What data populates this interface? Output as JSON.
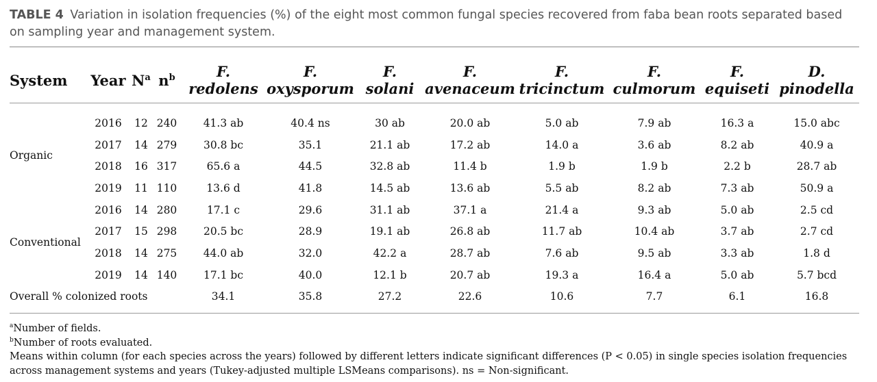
{
  "caption": {
    "label": "TABLE 4",
    "text": "Variation in isolation frequencies (%) of the eight most common fungal species recovered from faba bean roots separated based on sampling year and management system."
  },
  "headers": {
    "system": "System",
    "year": "Year",
    "N": "N",
    "N_sup": "a",
    "n": "n",
    "n_sup": "b",
    "species": [
      {
        "genus": "F.",
        "epithet": "redolens"
      },
      {
        "genus": "F.",
        "epithet": "oxysporum"
      },
      {
        "genus": "F.",
        "epithet": "solani"
      },
      {
        "genus": "F.",
        "epithet": "avenaceum"
      },
      {
        "genus": "F.",
        "epithet": "tricinctum"
      },
      {
        "genus": "F.",
        "epithet": "culmorum"
      },
      {
        "genus": "F.",
        "epithet": "equiseti"
      },
      {
        "genus": "D.",
        "epithet": "pinodella"
      }
    ]
  },
  "groups": [
    {
      "system": "Organic",
      "rows": [
        {
          "year": "2016",
          "N": "12",
          "n": "240",
          "values": [
            "41.3 ab",
            "40.4 ns",
            "30 ab",
            "20.0 ab",
            "5.0 ab",
            "7.9 ab",
            "16.3 a",
            "15.0 abc"
          ]
        },
        {
          "year": "2017",
          "N": "14",
          "n": "279",
          "values": [
            "30.8 bc",
            "35.1",
            "21.1 ab",
            "17.2 ab",
            "14.0 a",
            "3.6 ab",
            "8.2 ab",
            "40.9 a"
          ]
        },
        {
          "year": "2018",
          "N": "16",
          "n": "317",
          "values": [
            "65.6 a",
            "44.5",
            "32.8 ab",
            "11.4 b",
            "1.9 b",
            "1.9 b",
            "2.2 b",
            "28.7 ab"
          ]
        },
        {
          "year": "2019",
          "N": "11",
          "n": "110",
          "values": [
            "13.6 d",
            "41.8",
            "14.5 ab",
            "13.6 ab",
            "5.5 ab",
            "8.2 ab",
            "7.3 ab",
            "50.9 a"
          ]
        }
      ]
    },
    {
      "system": "Conventional",
      "rows": [
        {
          "year": "2016",
          "N": "14",
          "n": "280",
          "values": [
            "17.1 c",
            "29.6",
            "31.1 ab",
            "37.1 a",
            "21.4 a",
            "9.3 ab",
            "5.0 ab",
            "2.5 cd"
          ]
        },
        {
          "year": "2017",
          "N": "15",
          "n": "298",
          "values": [
            "20.5 bc",
            "28.9",
            "19.1 ab",
            "26.8 ab",
            "11.7 ab",
            "10.4 ab",
            "3.7 ab",
            "2.7 cd"
          ]
        },
        {
          "year": "2018",
          "N": "14",
          "n": "275",
          "values": [
            "44.0 ab",
            "32.0",
            "42.2 a",
            "28.7 ab",
            "7.6 ab",
            "9.5 ab",
            "3.3 ab",
            "1.8 d"
          ]
        },
        {
          "year": "2019",
          "N": "14",
          "n": "140",
          "values": [
            "17.1 bc",
            "40.0",
            "12.1 b",
            "20.7 ab",
            "19.3 a",
            "16.4 a",
            "5.0 ab",
            "5.7 bcd"
          ]
        }
      ]
    }
  ],
  "overall": {
    "label": "Overall % colonized roots",
    "values": [
      "34.1",
      "35.8",
      "27.2",
      "22.6",
      "10.6",
      "7.7",
      "6.1",
      "16.8"
    ]
  },
  "footnotes": {
    "a_sup": "a",
    "a_text": "Number of fields.",
    "b_sup": "b",
    "b_text": "Number of roots evaluated.",
    "means": "Means within column (for each species across the years) followed by different letters indicate significant differences (P < 0.05) in single species isolation frequencies across management systems and years (Tukey-adjusted multiple LSMeans comparisons). ns = Non-significant."
  }
}
